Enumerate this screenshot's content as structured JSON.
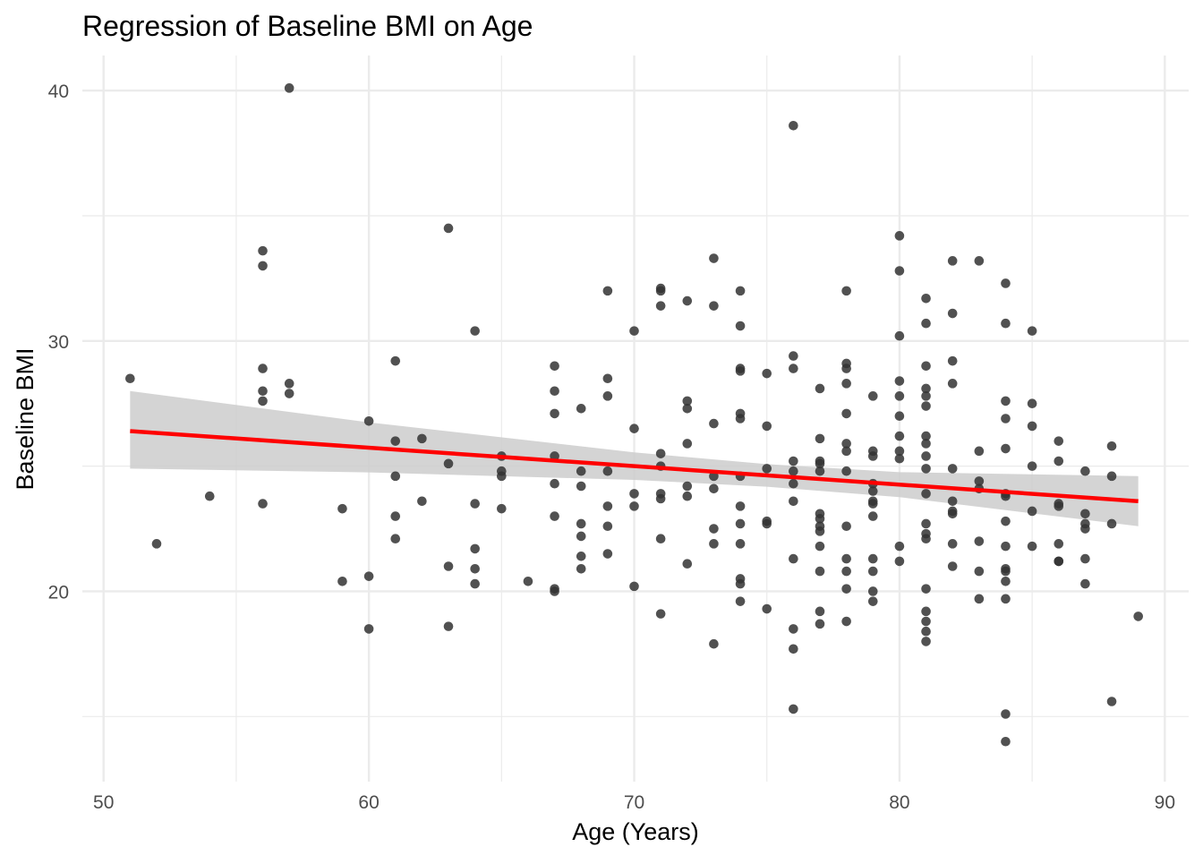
{
  "chart_data": {
    "type": "scatter",
    "title": "Regression of Baseline BMI on Age",
    "xlabel": "Age (Years)",
    "ylabel": "Baseline BMI",
    "xlim": [
      49.2,
      90.9
    ],
    "ylim": [
      12.4,
      41.4
    ],
    "xticks": [
      50,
      60,
      70,
      80,
      90
    ],
    "yticks": [
      20,
      30,
      40
    ],
    "grid": true,
    "point_color": "#333333",
    "line_color": "#ff0000",
    "band_color": "#cccccc",
    "regression": {
      "x": [
        51,
        89
      ],
      "y": [
        26.4,
        23.6
      ]
    },
    "confidence_band": {
      "x": [
        51,
        60,
        70,
        75,
        80,
        89
      ],
      "lower": [
        24.9,
        24.75,
        24.45,
        24.18,
        23.76,
        22.6
      ],
      "upper": [
        28.0,
        26.75,
        25.55,
        25.08,
        24.76,
        24.6
      ]
    },
    "points": [
      [
        51,
        28.5
      ],
      [
        52,
        21.9
      ],
      [
        54,
        23.8
      ],
      [
        56,
        33.6
      ],
      [
        56,
        33.0
      ],
      [
        56,
        28.9
      ],
      [
        56,
        28.0
      ],
      [
        56,
        27.6
      ],
      [
        56,
        23.5
      ],
      [
        57,
        40.1
      ],
      [
        57,
        28.3
      ],
      [
        57,
        27.9
      ],
      [
        59,
        23.3
      ],
      [
        59,
        20.4
      ],
      [
        60,
        26.8
      ],
      [
        60,
        20.6
      ],
      [
        60,
        18.5
      ],
      [
        61,
        29.2
      ],
      [
        61,
        26.0
      ],
      [
        61,
        24.6
      ],
      [
        61,
        23.0
      ],
      [
        61,
        22.1
      ],
      [
        62,
        26.1
      ],
      [
        62,
        23.6
      ],
      [
        63,
        34.5
      ],
      [
        63,
        25.1
      ],
      [
        63,
        21.0
      ],
      [
        63,
        18.6
      ],
      [
        64,
        30.4
      ],
      [
        64,
        23.5
      ],
      [
        64,
        21.7
      ],
      [
        64,
        20.9
      ],
      [
        64,
        20.3
      ],
      [
        65,
        25.4
      ],
      [
        65,
        24.8
      ],
      [
        65,
        24.6
      ],
      [
        65,
        23.3
      ],
      [
        66,
        20.4
      ],
      [
        67,
        29.0
      ],
      [
        67,
        28.0
      ],
      [
        67,
        27.1
      ],
      [
        67,
        25.4
      ],
      [
        67,
        24.3
      ],
      [
        67,
        23.0
      ],
      [
        67,
        20.1
      ],
      [
        67,
        20.0
      ],
      [
        68,
        27.3
      ],
      [
        68,
        24.8
      ],
      [
        68,
        24.2
      ],
      [
        68,
        22.7
      ],
      [
        68,
        22.2
      ],
      [
        68,
        21.4
      ],
      [
        68,
        20.9
      ],
      [
        69,
        32.0
      ],
      [
        69,
        28.5
      ],
      [
        69,
        27.8
      ],
      [
        69,
        24.8
      ],
      [
        69,
        23.4
      ],
      [
        69,
        22.6
      ],
      [
        69,
        21.5
      ],
      [
        70,
        30.4
      ],
      [
        70,
        26.5
      ],
      [
        70,
        23.9
      ],
      [
        70,
        23.4
      ],
      [
        70,
        20.2
      ],
      [
        71,
        32.1
      ],
      [
        71,
        32.0
      ],
      [
        71,
        31.4
      ],
      [
        71,
        25.5
      ],
      [
        71,
        25.0
      ],
      [
        71,
        23.9
      ],
      [
        71,
        23.7
      ],
      [
        71,
        22.1
      ],
      [
        71,
        19.1
      ],
      [
        72,
        31.6
      ],
      [
        72,
        27.6
      ],
      [
        72,
        27.3
      ],
      [
        72,
        25.9
      ],
      [
        72,
        24.2
      ],
      [
        72,
        23.8
      ],
      [
        72,
        21.1
      ],
      [
        73,
        33.3
      ],
      [
        73,
        31.4
      ],
      [
        73,
        26.7
      ],
      [
        73,
        24.6
      ],
      [
        73,
        24.1
      ],
      [
        73,
        22.5
      ],
      [
        73,
        21.9
      ],
      [
        73,
        17.9
      ],
      [
        74,
        32.0
      ],
      [
        74,
        30.6
      ],
      [
        74,
        28.9
      ],
      [
        74,
        28.8
      ],
      [
        74,
        27.1
      ],
      [
        74,
        26.9
      ],
      [
        74,
        24.6
      ],
      [
        74,
        23.4
      ],
      [
        74,
        22.7
      ],
      [
        74,
        21.9
      ],
      [
        74,
        20.5
      ],
      [
        74,
        20.3
      ],
      [
        74,
        19.6
      ],
      [
        75,
        28.7
      ],
      [
        75,
        26.6
      ],
      [
        75,
        24.9
      ],
      [
        75,
        22.8
      ],
      [
        75,
        22.7
      ],
      [
        75,
        19.3
      ],
      [
        76,
        38.6
      ],
      [
        76,
        29.4
      ],
      [
        76,
        28.9
      ],
      [
        76,
        25.2
      ],
      [
        76,
        24.8
      ],
      [
        76,
        24.3
      ],
      [
        76,
        23.6
      ],
      [
        76,
        21.3
      ],
      [
        76,
        18.5
      ],
      [
        76,
        17.7
      ],
      [
        76,
        15.3
      ],
      [
        77,
        28.1
      ],
      [
        77,
        26.1
      ],
      [
        77,
        25.2
      ],
      [
        77,
        25.1
      ],
      [
        77,
        24.8
      ],
      [
        77,
        23.1
      ],
      [
        77,
        22.9
      ],
      [
        77,
        22.6
      ],
      [
        77,
        22.4
      ],
      [
        77,
        21.8
      ],
      [
        77,
        20.8
      ],
      [
        77,
        19.2
      ],
      [
        77,
        18.7
      ],
      [
        78,
        32.0
      ],
      [
        78,
        29.1
      ],
      [
        78,
        28.9
      ],
      [
        78,
        28.3
      ],
      [
        78,
        27.1
      ],
      [
        78,
        25.9
      ],
      [
        78,
        25.6
      ],
      [
        78,
        24.8
      ],
      [
        78,
        22.6
      ],
      [
        78,
        21.3
      ],
      [
        78,
        20.8
      ],
      [
        78,
        20.1
      ],
      [
        78,
        18.8
      ],
      [
        79,
        27.8
      ],
      [
        79,
        25.6
      ],
      [
        79,
        25.4
      ],
      [
        79,
        24.3
      ],
      [
        79,
        24.0
      ],
      [
        79,
        23.6
      ],
      [
        79,
        23.5
      ],
      [
        79,
        23.0
      ],
      [
        79,
        21.3
      ],
      [
        79,
        20.8
      ],
      [
        79,
        20.0
      ],
      [
        79,
        19.6
      ],
      [
        80,
        34.2
      ],
      [
        80,
        32.8
      ],
      [
        80,
        30.2
      ],
      [
        80,
        28.4
      ],
      [
        80,
        27.8
      ],
      [
        80,
        27.0
      ],
      [
        80,
        26.2
      ],
      [
        80,
        25.6
      ],
      [
        80,
        25.3
      ],
      [
        80,
        21.8
      ],
      [
        80,
        21.2
      ],
      [
        81,
        31.7
      ],
      [
        81,
        30.7
      ],
      [
        81,
        29.0
      ],
      [
        81,
        28.1
      ],
      [
        81,
        27.8
      ],
      [
        81,
        27.4
      ],
      [
        81,
        26.2
      ],
      [
        81,
        25.9
      ],
      [
        81,
        25.4
      ],
      [
        81,
        24.9
      ],
      [
        81,
        23.9
      ],
      [
        81,
        22.7
      ],
      [
        81,
        22.3
      ],
      [
        81,
        22.1
      ],
      [
        81,
        20.1
      ],
      [
        81,
        19.2
      ],
      [
        81,
        18.8
      ],
      [
        81,
        18.4
      ],
      [
        81,
        18.0
      ],
      [
        82,
        33.2
      ],
      [
        82,
        31.1
      ],
      [
        82,
        29.2
      ],
      [
        82,
        28.3
      ],
      [
        82,
        24.9
      ],
      [
        82,
        23.6
      ],
      [
        82,
        23.2
      ],
      [
        82,
        23.1
      ],
      [
        82,
        21.9
      ],
      [
        82,
        21.0
      ],
      [
        83,
        33.2
      ],
      [
        83,
        25.6
      ],
      [
        83,
        24.4
      ],
      [
        83,
        24.1
      ],
      [
        83,
        22.0
      ],
      [
        83,
        20.8
      ],
      [
        83,
        19.7
      ],
      [
        84,
        32.3
      ],
      [
        84,
        30.7
      ],
      [
        84,
        27.6
      ],
      [
        84,
        26.9
      ],
      [
        84,
        25.7
      ],
      [
        84,
        23.9
      ],
      [
        84,
        23.8
      ],
      [
        84,
        22.8
      ],
      [
        84,
        21.8
      ],
      [
        84,
        20.9
      ],
      [
        84,
        20.8
      ],
      [
        84,
        20.4
      ],
      [
        84,
        19.7
      ],
      [
        84,
        15.1
      ],
      [
        84,
        14.0
      ],
      [
        85,
        30.4
      ],
      [
        85,
        27.5
      ],
      [
        85,
        26.6
      ],
      [
        85,
        25.0
      ],
      [
        85,
        23.2
      ],
      [
        85,
        21.8
      ],
      [
        86,
        26.0
      ],
      [
        86,
        25.2
      ],
      [
        86,
        23.5
      ],
      [
        86,
        23.4
      ],
      [
        86,
        21.9
      ],
      [
        86,
        21.2
      ],
      [
        86,
        21.2
      ],
      [
        87,
        24.8
      ],
      [
        87,
        23.1
      ],
      [
        87,
        22.7
      ],
      [
        87,
        22.5
      ],
      [
        87,
        21.3
      ],
      [
        87,
        20.3
      ],
      [
        88,
        25.8
      ],
      [
        88,
        24.6
      ],
      [
        88,
        22.7
      ],
      [
        88,
        15.6
      ],
      [
        89,
        19.0
      ]
    ]
  }
}
